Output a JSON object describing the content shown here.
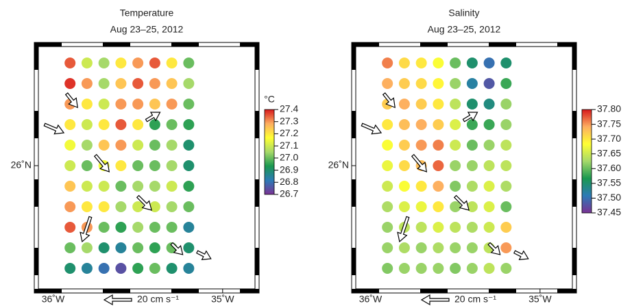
{
  "chart_data": [
    {
      "type": "scatter",
      "title": "Temperature",
      "subtitle": "Aug 23–25, 2012",
      "xlim": [
        -36.111,
        -34.785
      ],
      "ylim": [
        25.38,
        26.6
      ],
      "xticks": [
        {
          "value": -36,
          "label": "36˚W"
        },
        {
          "value": -35,
          "label": "35˚W"
        }
      ],
      "yticks": [
        {
          "value": 26,
          "label": "26˚N"
        }
      ],
      "colormap": [
        "#7b3294",
        "#2c7bb6",
        "#1a9850",
        "#a6d96a",
        "#ffff33",
        "#fdae61",
        "#d7191c"
      ],
      "clim": [
        26.7,
        27.4
      ],
      "colorbar_label": "°C",
      "colorbar_ticks": [
        27.4,
        27.3,
        27.2,
        27.1,
        {
          "value": 27,
          "label": "27.0"
        },
        26.9,
        26.8,
        26.7
      ],
      "x": [
        -35.9,
        -35.9,
        -35.9,
        -35.9,
        -35.9,
        -35.9,
        -35.9,
        -35.9,
        -35.9,
        -35.9,
        -35.9,
        -35.8,
        -35.8,
        -35.8,
        -35.8,
        -35.8,
        -35.8,
        -35.8,
        -35.8,
        -35.8,
        -35.8,
        -35.8,
        -35.7,
        -35.7,
        -35.7,
        -35.7,
        -35.7,
        -35.7,
        -35.7,
        -35.7,
        -35.7,
        -35.7,
        -35.7,
        -35.6,
        -35.6,
        -35.6,
        -35.6,
        -35.6,
        -35.6,
        -35.6,
        -35.6,
        -35.6,
        -35.6,
        -35.6,
        -35.5,
        -35.5,
        -35.5,
        -35.5,
        -35.5,
        -35.5,
        -35.5,
        -35.5,
        -35.5,
        -35.5,
        -35.5,
        -35.4,
        -35.4,
        -35.4,
        -35.4,
        -35.4,
        -35.4,
        -35.4,
        -35.4,
        -35.4,
        -35.4,
        -35.4,
        -35.3,
        -35.3,
        -35.3,
        -35.3,
        -35.3,
        -35.3,
        -35.3,
        -35.3,
        -35.3,
        -35.3,
        -35.3,
        -35.2,
        -35.2,
        -35.2,
        -35.2,
        -35.2,
        -35.2,
        -35.2,
        -35.2,
        -35.2,
        -35.2,
        -35.2
      ],
      "y": [
        26.5,
        26.4,
        26.3,
        26.2,
        26.1,
        26.0,
        25.9,
        25.8,
        25.7,
        25.6,
        25.5,
        26.5,
        26.4,
        26.3,
        26.2,
        26.1,
        26.0,
        25.9,
        25.8,
        25.7,
        25.6,
        25.5,
        26.5,
        26.4,
        26.3,
        26.2,
        26.1,
        26.0,
        25.9,
        25.8,
        25.7,
        25.6,
        25.5,
        26.5,
        26.4,
        26.3,
        26.2,
        26.1,
        26.0,
        25.9,
        25.8,
        25.7,
        25.6,
        25.5,
        26.5,
        26.4,
        26.3,
        26.2,
        26.1,
        26.0,
        25.9,
        25.8,
        25.7,
        25.6,
        25.5,
        26.5,
        26.4,
        26.3,
        26.2,
        26.1,
        26.0,
        25.9,
        25.8,
        25.7,
        25.6,
        25.5,
        26.5,
        26.4,
        26.3,
        26.2,
        26.1,
        26.0,
        25.9,
        25.8,
        25.7,
        25.6,
        25.5,
        26.5,
        26.4,
        26.3,
        26.2,
        26.1,
        26.0,
        25.9,
        25.8,
        25.7,
        25.6,
        25.5
      ],
      "values": [
        27.35,
        27.38,
        27.3,
        27.2,
        27.15,
        27.1,
        27.25,
        27.3,
        27.35,
        27.0,
        26.9,
        27.1,
        27.3,
        27.2,
        27.1,
        27.05,
        27.0,
        27.1,
        27.2,
        27.3,
        27.05,
        26.85,
        27.05,
        27.05,
        27.1,
        27.2,
        27.25,
        27.15,
        27.1,
        27.2,
        27.0,
        26.9,
        26.8,
        27.2,
        27.25,
        27.3,
        27.35,
        27.3,
        27.2,
        27.0,
        27.05,
        26.95,
        26.85,
        26.75,
        27.3,
        27.35,
        27.3,
        27.2,
        27.1,
        27.0,
        27.05,
        27.1,
        27.05,
        27.0,
        26.95,
        27.35,
        27.3,
        27.25,
        26.95,
        27.0,
        27.0,
        27.05,
        27.1,
        27.0,
        26.95,
        27.0,
        27.2,
        27.25,
        27.3,
        27.0,
        27.05,
        27.05,
        27.1,
        27.05,
        27.0,
        27.0,
        26.9,
        27.0,
        27.05,
        27.0,
        26.95,
        26.9,
        26.9,
        26.95,
        27.0,
        26.85,
        26.9,
        26.85
      ],
      "vectors": {
        "x": [
          -35.92,
          -36.05,
          -35.75,
          -35.45,
          -35.78,
          -35.5,
          -35.3,
          -35.15
        ],
        "y": [
          26.35,
          26.2,
          26.05,
          26.22,
          25.75,
          25.85,
          25.62,
          25.58
        ],
        "u": [
          8,
          14,
          10,
          10,
          -6,
          10,
          8,
          10
        ],
        "v": [
          -10,
          -6,
          -12,
          6,
          -18,
          -10,
          -8,
          -5
        ]
      },
      "vector_scale": {
        "value": 20,
        "label": "20 cm s⁻¹"
      }
    },
    {
      "type": "scatter",
      "title": "Salinity",
      "subtitle": "Aug 23–25, 2012",
      "xlim": [
        -36.111,
        -34.785
      ],
      "ylim": [
        25.38,
        26.6
      ],
      "xticks": [
        {
          "value": -36,
          "label": "36˚W"
        },
        {
          "value": -35,
          "label": "35˚W"
        }
      ],
      "yticks": [
        {
          "value": 26,
          "label": "26˚N"
        }
      ],
      "colormap": [
        "#7b3294",
        "#2c7bb6",
        "#1a9850",
        "#a6d96a",
        "#ffff33",
        "#fdae61",
        "#d7191c"
      ],
      "clim": [
        37.45,
        37.8
      ],
      "colorbar_ticks": [
        {
          "value": 37.8,
          "label": "37.80"
        },
        37.75,
        {
          "value": 37.7,
          "label": "37.70"
        },
        37.65,
        {
          "value": 37.6,
          "label": "37.60"
        },
        37.55,
        {
          "value": 37.5,
          "label": "37.50"
        },
        37.45
      ],
      "x": [
        -35.9,
        -35.9,
        -35.9,
        -35.9,
        -35.9,
        -35.9,
        -35.9,
        -35.9,
        -35.9,
        -35.9,
        -35.9,
        -35.8,
        -35.8,
        -35.8,
        -35.8,
        -35.8,
        -35.8,
        -35.8,
        -35.8,
        -35.8,
        -35.8,
        -35.8,
        -35.7,
        -35.7,
        -35.7,
        -35.7,
        -35.7,
        -35.7,
        -35.7,
        -35.7,
        -35.7,
        -35.7,
        -35.7,
        -35.6,
        -35.6,
        -35.6,
        -35.6,
        -35.6,
        -35.6,
        -35.6,
        -35.6,
        -35.6,
        -35.6,
        -35.6,
        -35.5,
        -35.5,
        -35.5,
        -35.5,
        -35.5,
        -35.5,
        -35.5,
        -35.5,
        -35.5,
        -35.5,
        -35.5,
        -35.4,
        -35.4,
        -35.4,
        -35.4,
        -35.4,
        -35.4,
        -35.4,
        -35.4,
        -35.4,
        -35.4,
        -35.4,
        -35.3,
        -35.3,
        -35.3,
        -35.3,
        -35.3,
        -35.3,
        -35.3,
        -35.3,
        -35.3,
        -35.3,
        -35.3,
        -35.2,
        -35.2,
        -35.2,
        -35.2,
        -35.2,
        -35.2,
        -35.2,
        -35.2,
        -35.2,
        -35.2,
        -35.2
      ],
      "y": [
        26.5,
        26.4,
        26.3,
        26.2,
        26.1,
        26.0,
        25.9,
        25.8,
        25.7,
        25.6,
        25.5,
        26.5,
        26.4,
        26.3,
        26.2,
        26.1,
        26.0,
        25.9,
        25.8,
        25.7,
        25.6,
        25.5,
        26.5,
        26.4,
        26.3,
        26.2,
        26.1,
        26.0,
        25.9,
        25.8,
        25.7,
        25.6,
        25.5,
        26.5,
        26.4,
        26.3,
        26.2,
        26.1,
        26.0,
        25.9,
        25.8,
        25.7,
        25.6,
        25.5,
        26.5,
        26.4,
        26.3,
        26.2,
        26.1,
        26.0,
        25.9,
        25.8,
        25.7,
        25.6,
        25.5,
        26.5,
        26.4,
        26.3,
        26.2,
        26.1,
        26.0,
        25.9,
        25.8,
        25.7,
        25.6,
        25.5,
        26.5,
        26.4,
        26.3,
        26.2,
        26.1,
        26.0,
        25.9,
        25.8,
        25.7,
        25.6,
        25.5,
        26.5,
        26.4,
        26.3,
        26.2,
        26.1,
        26.0,
        25.9,
        25.8,
        25.7,
        25.6,
        25.5
      ],
      "values": [
        37.76,
        37.74,
        37.72,
        37.7,
        37.68,
        37.67,
        37.65,
        37.63,
        37.62,
        37.62,
        37.61,
        37.71,
        37.72,
        37.74,
        37.73,
        37.72,
        37.71,
        37.68,
        37.66,
        37.64,
        37.63,
        37.62,
        37.7,
        37.71,
        37.72,
        37.74,
        37.75,
        37.73,
        37.7,
        37.67,
        37.64,
        37.62,
        37.62,
        37.68,
        37.69,
        37.7,
        37.72,
        37.76,
        37.77,
        37.74,
        37.7,
        37.66,
        37.63,
        37.62,
        37.6,
        37.62,
        37.64,
        37.66,
        37.65,
        37.62,
        37.61,
        37.62,
        37.64,
        37.62,
        37.61,
        37.55,
        37.52,
        37.55,
        37.58,
        37.6,
        37.62,
        37.63,
        37.64,
        37.63,
        37.62,
        37.62,
        37.5,
        37.48,
        37.54,
        37.58,
        37.62,
        37.64,
        37.66,
        37.66,
        37.65,
        37.64,
        37.64,
        37.55,
        37.58,
        37.62,
        37.62,
        37.64,
        37.64,
        37.63,
        37.6,
        37.72,
        37.75,
        37.62
      ],
      "vectors": {
        "x": [
          -35.92,
          -36.05,
          -35.75,
          -35.45,
          -35.78,
          -35.5,
          -35.3,
          -35.15
        ],
        "y": [
          26.35,
          26.2,
          26.05,
          26.22,
          25.75,
          25.85,
          25.62,
          25.58
        ],
        "u": [
          8,
          14,
          10,
          10,
          -6,
          10,
          8,
          10
        ],
        "v": [
          -10,
          -6,
          -12,
          6,
          -18,
          -10,
          -8,
          -5
        ]
      },
      "vector_scale": {
        "value": 20,
        "label": "20 cm s⁻¹"
      }
    }
  ]
}
